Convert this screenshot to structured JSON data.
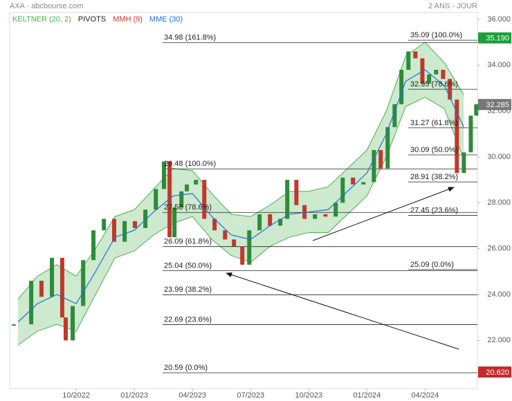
{
  "header": {
    "title": "AXA - abcbourse.com",
    "period": "2 ANS - JOUR"
  },
  "chart_data": {
    "type": "stock",
    "price": {
      "color": "#2e8b3a",
      "x": [
        5.78,
        6.68,
        7.21,
        7.75,
        8.28,
        8.46,
        8.82,
        9.36,
        9.89,
        10.43,
        10.96,
        11.5,
        12.03,
        12.57,
        13.11,
        13.53,
        13.82,
        14.07,
        14.43,
        14.71,
        15.18,
        15.61,
        16.14,
        16.68,
        17.14,
        17.57,
        17.93,
        18.46,
        19.0,
        19.53,
        19.89,
        20.36,
        20.78,
        21.32,
        21.86,
        22.39,
        22.75,
        23.28,
        23.82,
        24.36,
        24.71,
        25.07,
        25.43,
        25.78,
        26.14,
        26.5,
        26.86,
        27.21,
        27.57,
        27.93,
        28.28,
        28.64,
        29.0,
        29.36,
        29.64
      ],
      "values": [
        22.7,
        24.6,
        23.9,
        25.6,
        23.0,
        22.0,
        23.5,
        25.5,
        26.8,
        27.3,
        26.3,
        27.2,
        26.9,
        27.7,
        28.6,
        29.8,
        26.5,
        27.8,
        28.5,
        28.8,
        29.0,
        27.3,
        26.8,
        26.4,
        26.1,
        25.3,
        26.8,
        27.5,
        27.0,
        27.3,
        29.0,
        27.9,
        27.3,
        27.5,
        27.4,
        28.0,
        29.1,
        28.8,
        28.9,
        30.3,
        29.5,
        31.3,
        32.3,
        33.8,
        34.6,
        34.3,
        33.2,
        33.6,
        33.8,
        33.4,
        32.5,
        29.3,
        30.2,
        31.8,
        32.3
      ]
    },
    "series": [
      {
        "name": "KELTNER (20, 2)",
        "color": "#4caf50",
        "x": [
          6,
          7,
          8,
          9,
          10,
          11,
          12,
          13,
          14,
          15,
          16,
          17,
          18,
          19,
          20,
          21,
          22,
          23,
          24,
          25,
          26,
          27,
          28,
          29
        ],
        "upper": [
          23.8,
          24.8,
          25.3,
          24.8,
          26.0,
          27.4,
          27.7,
          28.6,
          29.5,
          29.4,
          28.4,
          27.5,
          27.4,
          27.9,
          28.5,
          28.5,
          28.7,
          29.5,
          30.3,
          32.0,
          34.4,
          35.0,
          34.1,
          32.7
        ],
        "lower": [
          21.8,
          22.4,
          22.7,
          22.4,
          24.0,
          25.6,
          25.9,
          26.6,
          27.1,
          27.4,
          26.4,
          25.7,
          25.4,
          26.1,
          26.5,
          26.7,
          26.7,
          27.5,
          28.3,
          30.0,
          32.2,
          32.6,
          32.1,
          29.9
        ]
      },
      {
        "name": "PIVOTS",
        "color": "#222222",
        "levels_left": [
          {
            "value": 34.98,
            "label": "34.98  (161.8%)"
          },
          {
            "value": 29.48,
            "label": "29.48  (100.0%)"
          },
          {
            "value": 27.58,
            "label": "27.58  (78.6%)"
          },
          {
            "value": 26.09,
            "label": "26.09  (61.8%)"
          },
          {
            "value": 25.04,
            "label": "25.04  (50.0%)"
          },
          {
            "value": 23.99,
            "label": "23.99  (38.2%)"
          },
          {
            "value": 22.69,
            "label": "22.69  (23.6%)"
          },
          {
            "value": 20.59,
            "label": "20.59  (0.0%)"
          }
        ],
        "levels_right": [
          {
            "value": 35.09,
            "label": "35.09  (100.0%)"
          },
          {
            "value": 32.95,
            "label": "32.95  (78.6%)"
          },
          {
            "value": 31.27,
            "label": "31.27  (61.8%)"
          },
          {
            "value": 30.09,
            "label": "30.09  (50.0%)"
          },
          {
            "value": 28.91,
            "label": "28.91  (38.2%)"
          },
          {
            "value": 27.45,
            "label": "27.45  (23.6%)"
          },
          {
            "value": 25.09,
            "label": "25.09  (0.0%)"
          }
        ]
      },
      {
        "name": "MMH (9)",
        "color": "#c0392b"
      },
      {
        "name": "MME (30)",
        "color": "#1f6fd1",
        "x": [
          6,
          7,
          8,
          9,
          10,
          11,
          12,
          13,
          14,
          15,
          16,
          17,
          18,
          19,
          20,
          21,
          22,
          23,
          24,
          25,
          26,
          27,
          28,
          29
        ],
        "values": [
          22.8,
          23.6,
          24.0,
          23.6,
          25.0,
          26.5,
          26.8,
          27.6,
          28.3,
          28.4,
          27.4,
          26.6,
          26.4,
          27.0,
          27.5,
          27.6,
          27.7,
          28.5,
          29.3,
          31.0,
          33.3,
          33.8,
          33.1,
          31.3
        ]
      }
    ],
    "price_tags": [
      {
        "value": 35.19,
        "label": "35.190",
        "color": "#1f9d3a"
      },
      {
        "value": 32.285,
        "label": "32.285",
        "color": "#777777"
      },
      {
        "value": 20.62,
        "label": "20.620",
        "color": "#c62828"
      }
    ],
    "xlim": [
      5.57,
      29.7
    ],
    "ylim": [
      19.9,
      36.3
    ],
    "xticks": [
      {
        "value": 9,
        "label": "10/2022"
      },
      {
        "value": 12,
        "label": "01/2023"
      },
      {
        "value": 15,
        "label": "04/2023"
      },
      {
        "value": 18,
        "label": "07/2023"
      },
      {
        "value": 21,
        "label": "10/2023"
      },
      {
        "value": 24,
        "label": "01/2024"
      },
      {
        "value": 27,
        "label": "04/2024"
      }
    ],
    "yticks": [
      {
        "value": 36,
        "label": "36.000"
      },
      {
        "value": 34,
        "label": "34.000"
      },
      {
        "value": 32,
        "label": "32.000"
      },
      {
        "value": 30,
        "label": "30.000"
      },
      {
        "value": 28,
        "label": "28.000"
      },
      {
        "value": 26,
        "label": "26.000"
      },
      {
        "value": 24,
        "label": "24.000"
      },
      {
        "value": 22,
        "label": "22.000"
      }
    ]
  }
}
